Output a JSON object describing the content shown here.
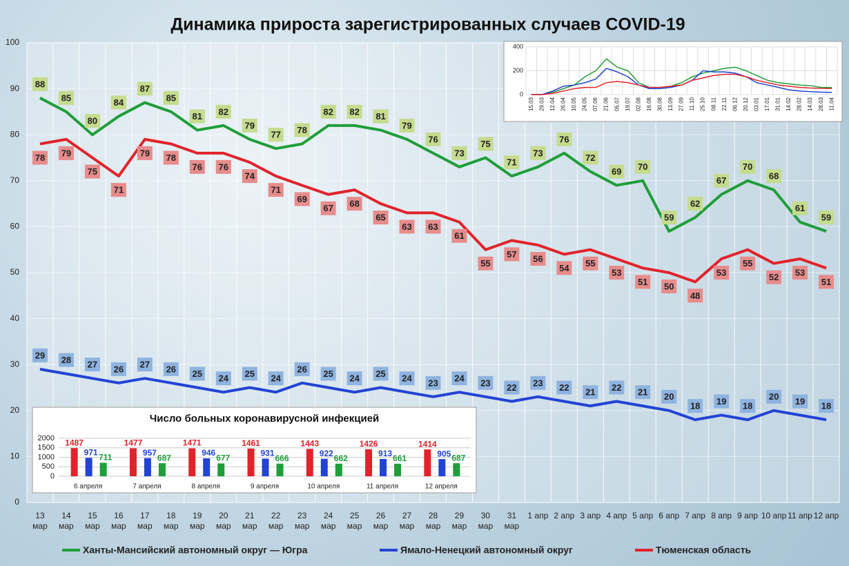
{
  "chart_data": [
    {
      "type": "line",
      "title": "Динамика прироста зарегистрированных случаев COVID-19",
      "categories": [
        "13 мар",
        "14 мар",
        "15 мар",
        "16 мар",
        "17 мар",
        "18 мар",
        "19 мар",
        "20 мар",
        "21 мар",
        "22 мар",
        "23 мар",
        "24 мар",
        "25 мар",
        "26 мар",
        "27 мар",
        "28 мар",
        "29 мар",
        "30 мар",
        "31 мар",
        "1 апр",
        "2 апр",
        "3 апр",
        "4 апр",
        "5 апр",
        "6 апр",
        "7 апр",
        "8 апр",
        "9 апр",
        "10 апр",
        "11 апр",
        "12 апр"
      ],
      "series": [
        {
          "name": "Ханты-Мансийский автономный округ — Югра",
          "color": "#1f9e3a",
          "label_color": "#c5db8e",
          "values": [
            88,
            85,
            80,
            84,
            87,
            85,
            81,
            82,
            79,
            77,
            78,
            82,
            82,
            81,
            79,
            76,
            73,
            75,
            71,
            73,
            76,
            72,
            69,
            70,
            59,
            62,
            67,
            70,
            68,
            61,
            59
          ]
        },
        {
          "name": "Ямало-Ненецкий автономный округ",
          "color": "#2243d4",
          "label_color": "#8fb3df",
          "values": [
            29,
            28,
            27,
            26,
            27,
            26,
            25,
            24,
            25,
            24,
            26,
            25,
            24,
            25,
            24,
            23,
            24,
            23,
            22,
            23,
            22,
            21,
            22,
            21,
            20,
            18,
            19,
            18,
            20,
            19,
            18
          ]
        },
        {
          "name": "Тюменская область",
          "color": "#e1232b",
          "label_color": "#e68c8c",
          "values": [
            78,
            79,
            75,
            71,
            79,
            78,
            76,
            76,
            74,
            71,
            69,
            67,
            68,
            65,
            63,
            63,
            61,
            55,
            57,
            56,
            54,
            55,
            53,
            51,
            50,
            48,
            53,
            55,
            52,
            53,
            51
          ]
        }
      ],
      "ylim": [
        0,
        100
      ],
      "yticks": [
        0,
        10,
        20,
        30,
        40,
        50,
        60,
        70,
        80,
        90,
        100
      ],
      "grid": true
    },
    {
      "type": "line",
      "categories": [
        "15.03",
        "29.03",
        "12.04",
        "26.04",
        "10.05",
        "24.05",
        "07.06",
        "21.06",
        "05.07",
        "19.07",
        "02.08",
        "16.08",
        "30.08",
        "13.09",
        "27.09",
        "11.10",
        "25.10",
        "08.11",
        "22.11",
        "06.12",
        "20.12",
        "03.01",
        "17.01",
        "31.01",
        "14.02",
        "28.02",
        "14.03",
        "28.03",
        "11.04"
      ],
      "series": [
        {
          "color": "#1f9e3a",
          "values": [
            0,
            0,
            20,
            50,
            80,
            150,
            200,
            300,
            230,
            200,
            100,
            60,
            60,
            70,
            100,
            150,
            180,
            200,
            220,
            230,
            200,
            160,
            120,
            100,
            90,
            80,
            75,
            60,
            59
          ]
        },
        {
          "color": "#2243d4",
          "values": [
            0,
            0,
            30,
            70,
            80,
            100,
            130,
            220,
            190,
            150,
            80,
            50,
            50,
            60,
            80,
            120,
            200,
            190,
            190,
            180,
            150,
            100,
            80,
            60,
            40,
            30,
            25,
            20,
            18
          ]
        },
        {
          "color": "#e1232b",
          "values": [
            0,
            0,
            10,
            30,
            50,
            60,
            60,
            100,
            110,
            100,
            80,
            60,
            60,
            70,
            80,
            120,
            140,
            160,
            170,
            170,
            150,
            120,
            100,
            80,
            70,
            60,
            55,
            52,
            51
          ]
        }
      ],
      "ylim": [
        0,
        400
      ],
      "yticks": [
        0,
        200,
        400
      ],
      "grid": true
    },
    {
      "type": "bar",
      "title": "Число больных коронавирусной инфекцией",
      "categories": [
        "6 апреля",
        "7 апреля",
        "8 апреля",
        "9 апреля",
        "10 апреля",
        "11 апреля",
        "12 апреля"
      ],
      "series": [
        {
          "color": "#e1232b",
          "values": [
            1487,
            1477,
            1471,
            1461,
            1443,
            1426,
            1414
          ]
        },
        {
          "color": "#2243d4",
          "values": [
            971,
            957,
            946,
            931,
            922,
            913,
            905
          ]
        },
        {
          "color": "#1f9e3a",
          "values": [
            711,
            687,
            677,
            666,
            662,
            661,
            687
          ]
        }
      ],
      "ylim": [
        0,
        2000
      ],
      "yticks": [
        0,
        500,
        1000,
        1500,
        2000
      ],
      "grid": true
    }
  ]
}
